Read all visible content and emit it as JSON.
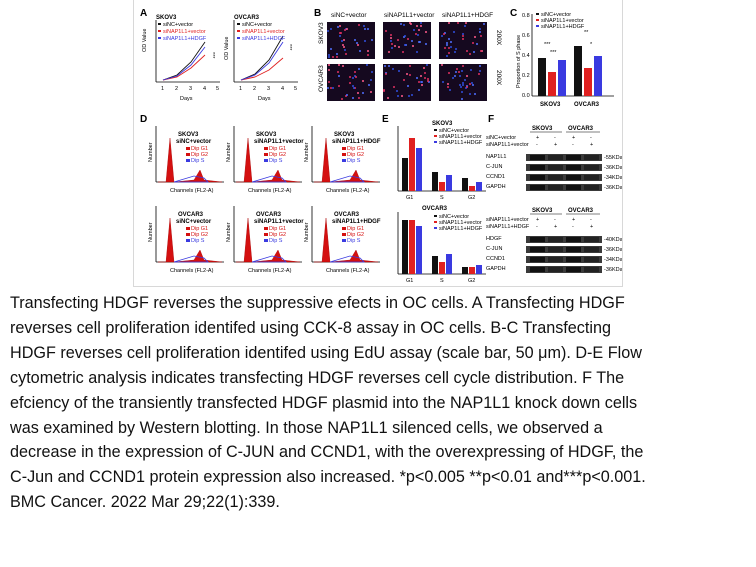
{
  "figure": {
    "panel_letters": [
      "A",
      "B",
      "C",
      "D",
      "E",
      "F"
    ],
    "A": {
      "charts": [
        {
          "title": "SKOV3",
          "ylabel": "OD Value",
          "xlabel": "Days",
          "ticks_x": [
            "1",
            "2",
            "3",
            "4",
            "5"
          ],
          "ticks_y": [
            "0.0",
            "0.5",
            "1.0",
            "1.5",
            "2.0"
          ],
          "sig": "***"
        },
        {
          "title": "OVCAR3",
          "ylabel": "OD Value",
          "xlabel": "Days",
          "ticks_x": [
            "1",
            "2",
            "3",
            "4",
            "5"
          ],
          "ticks_y": [
            "0.0",
            "0.5",
            "1.0",
            "1.5",
            "2.0"
          ],
          "sig": "***"
        }
      ],
      "legend": [
        "siNC+vector",
        "siNAP1L1+vector",
        "siNAP1L1+HDGF"
      ]
    },
    "B": {
      "col_labels": [
        "siNC+vector",
        "siNAP1L1+vector",
        "siNAP1L1+HDGF"
      ],
      "row_labels": [
        "SKOV3",
        "OVCAR3"
      ],
      "magnification": "200X"
    },
    "C": {
      "ylabel": "Proportion of S phase",
      "ticks_y": [
        "0.0",
        "0.2",
        "0.4",
        "0.6",
        "0.8"
      ],
      "legend": [
        "siNC+vector",
        "siNAP1L1+vector",
        "siNAP1L1+HDGF"
      ],
      "sig": [
        "***",
        "***",
        "**",
        "*"
      ]
    },
    "D": {
      "panels": [
        {
          "cell": "SKOV3",
          "group": "siNC+vector"
        },
        {
          "cell": "SKOV3",
          "group": "siNAP1L1+vector"
        },
        {
          "cell": "SKOV3",
          "group": "siNAP1L1+HDGF"
        },
        {
          "cell": "OVCAR3",
          "group": "siNC+vector"
        },
        {
          "cell": "OVCAR3",
          "group": "siNAP1L1+vector"
        },
        {
          "cell": "OVCAR3",
          "group": "siNAP1L1+HDGF"
        }
      ],
      "legend": [
        "Dip G1",
        "Dip G2",
        "Dip S"
      ],
      "xlabel": "Channels (FL2-A)",
      "ylabel": "Number"
    },
    "E": {
      "titles": [
        "SKOV3",
        "OVCAR3"
      ],
      "categories": [
        "G1",
        "S",
        "G2"
      ],
      "legend": [
        "siNC+vector",
        "siNAP1L1+vector",
        "siNAP1L1+HDGF"
      ]
    },
    "F": {
      "blot1": {
        "cols": [
          "SKOV3",
          "OVCAR3"
        ],
        "rows": [
          "siNC+vector",
          "siNAP1L1+vector"
        ],
        "signs": [
          "+",
          "-",
          "+",
          "-"
        ],
        "signs2": [
          "-",
          "+",
          "-",
          "+"
        ],
        "bands": [
          "NAP1L1",
          "C-JUN",
          "CCND1",
          "GAPDH"
        ],
        "kda": [
          "-55KDa",
          "-36KDa",
          "-34KDa",
          "-36KDa"
        ]
      },
      "blot2": {
        "cols": [
          "SKOV3",
          "OVCAR3"
        ],
        "rows": [
          "siNAP1L1+vector",
          "siNAP1L1+HDGF"
        ],
        "signs": [
          "+",
          "-",
          "+",
          "-"
        ],
        "signs2": [
          "-",
          "+",
          "-",
          "+"
        ],
        "bands": [
          "HDGF",
          "C-JUN",
          "CCND1",
          "GAPDH"
        ],
        "kda": [
          "-40KDa",
          "-36KDa",
          "-34KDa",
          "-36KDa"
        ]
      }
    }
  },
  "caption_lines": [
    "Transfecting HDGF reverses the suppressive efects in OC cells. A Transfecting HDGF",
    "reverses cell proliferation identifed using CCK-8 assay in OC cells. B-C Transfecting",
    "HDGF reverses cell proliferation identifed using EdU assay (scale bar, 50 μm). D-E Flow",
    "cytometric analysis indicates transfecting HDGF reverses cell cycle distribution. F The",
    "efciency of the transiently transfected HDGF plasmid into the NAP1L1 knock down cells",
    "was examined by Western blotting. In those NAP1L1 silenced cells, we observed a",
    "decrease in the expression of C-JUN and CCND1, with the overexpressing of HDGF, the",
    "C-Jun and CCND1 protein expression also increased. *p<0.005 **p<0.01 and***p<0.001.",
    "BMC Cancer. 2022 Mar 29;22(1):339."
  ],
  "colors": {
    "black": "#111111",
    "red": "#e02020",
    "blue": "#3a3ae0",
    "flow_red": "#d41010"
  }
}
